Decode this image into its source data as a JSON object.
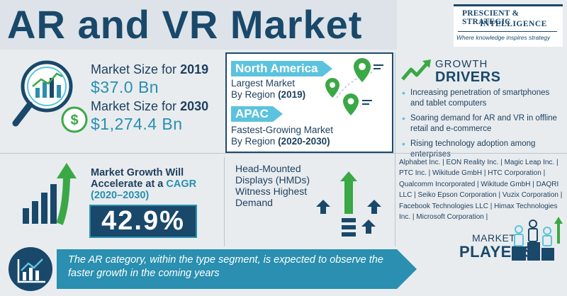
{
  "header": {
    "title": "AR and VR Market",
    "logo_line1": "PRESCIENT & STRATEGIC",
    "logo_line2": "INTELLIGENCE",
    "logo_tagline": "Where knowledge inspires strategy"
  },
  "market_size": {
    "label_2019": "Market Size for",
    "year_2019": "2019",
    "value_2019": "$37.0 Bn",
    "label_2030": "Market Size for",
    "year_2030": "2030",
    "value_2030": "$1,274.4 Bn"
  },
  "regions": {
    "largest": {
      "tag": "North America",
      "desc_line1": "Largest Market",
      "desc_line2": "By Region",
      "period": "(2019)"
    },
    "fastest": {
      "tag": "APAC",
      "desc_line1": "Fastest-Growing Market",
      "desc_line2": "By Region",
      "period": "(2020-2030)"
    }
  },
  "growth_drivers": {
    "heading_small": "GROWTH",
    "heading_big": "DRIVERS",
    "items": [
      "Increasing penetration of smartphones and tablet computers",
      "Soaring demand for AR and VR in offline retail and e-commerce",
      "Rising technology adoption among enterprises"
    ]
  },
  "cagr": {
    "line1": "Market Growth Will",
    "line2_prefix": "Accelerate at a",
    "line2_hl": "CAGR",
    "line3": "(2020–2030)",
    "value": "42.9%"
  },
  "hmd": {
    "text": "Head-Mounted Displays (HMDs) Witness Highest Demand"
  },
  "players": {
    "list": "Alphabet Inc. | EON Reality Inc. | Magic Leap Inc. | PTC Inc. | Wikitude GmbH | HTC Corporation | Qualcomm Incorporated | Wikitude GmbH | DAQRI LLC | Seiko Epson Corporation | Vuzix Corporation | Facebook Technologies LLC | Himax Technologies Inc. | Microsoft Corporation |",
    "heading_small": "MARKET",
    "heading_big": "PLAYERS"
  },
  "banner": {
    "text": "The AR category, within the type segment, is expected to observe the faster growth in the coming years"
  },
  "colors": {
    "navy": "#19486a",
    "teal": "#2a8fb0",
    "cyan": "#5cc3de",
    "green": "#3aa845",
    "background": "#e8ecef"
  },
  "icons": [
    "magnifier-chart-icon",
    "dollar-icon",
    "location-pin-icon",
    "trend-up-icon",
    "bar-growth-icon",
    "arrows-up-icon",
    "people-podium-icon",
    "chart-icon"
  ]
}
